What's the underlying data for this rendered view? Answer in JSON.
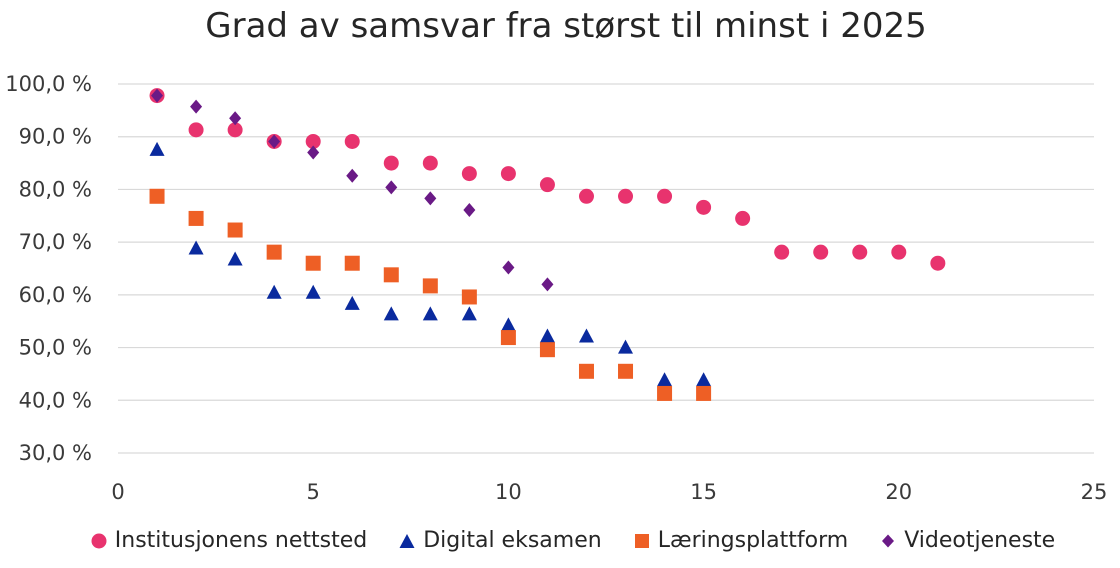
{
  "chart_data": {
    "type": "scatter",
    "title": "Grad av samsvar fra størst til minst i 2025",
    "xlabel": "",
    "ylabel": "",
    "xlim": [
      0,
      25
    ],
    "ylim": [
      30,
      100
    ],
    "x_ticks": [
      0,
      5,
      10,
      15,
      20,
      25
    ],
    "x_tick_labels": [
      "0",
      "5",
      "10",
      "15",
      "20",
      "25"
    ],
    "y_ticks": [
      30,
      40,
      50,
      60,
      70,
      80,
      90,
      100
    ],
    "y_tick_labels": [
      "30,0 %",
      "40,0 %",
      "50,0 %",
      "60,0 %",
      "70,0 %",
      "80,0 %",
      "90,0 %",
      "100,0 %"
    ],
    "grid": "horizontal",
    "legend_position": "bottom",
    "series": [
      {
        "name": "Institusjonens nettsted",
        "marker": "circle",
        "color": "#e8336e",
        "x": [
          1,
          2,
          3,
          4,
          5,
          6,
          7,
          8,
          9,
          10,
          11,
          12,
          13,
          14,
          15,
          16,
          17,
          18,
          19,
          20,
          21
        ],
        "y": [
          97.8,
          91.3,
          91.3,
          89.1,
          89.1,
          89.1,
          85.0,
          85.0,
          83.0,
          83.0,
          80.9,
          78.7,
          78.7,
          78.7,
          76.6,
          74.5,
          68.1,
          68.1,
          68.1,
          68.1,
          66.0
        ]
      },
      {
        "name": "Digital eksamen",
        "marker": "triangle",
        "color": "#0a2a9e",
        "x": [
          1,
          2,
          3,
          4,
          5,
          6,
          7,
          8,
          9,
          10,
          11,
          12,
          13,
          14,
          15
        ],
        "y": [
          87.5,
          68.8,
          66.7,
          60.4,
          60.4,
          58.3,
          56.3,
          56.3,
          56.3,
          54.2,
          52.1,
          52.1,
          50.0,
          43.8,
          43.8
        ]
      },
      {
        "name": "Læringsplattform",
        "marker": "square",
        "color": "#ee5f25",
        "x": [
          1,
          2,
          3,
          4,
          5,
          6,
          7,
          8,
          9,
          10,
          11,
          12,
          13,
          14,
          15
        ],
        "y": [
          78.7,
          74.5,
          72.3,
          68.1,
          66.0,
          66.0,
          63.8,
          61.7,
          59.6,
          51.9,
          49.6,
          45.5,
          45.5,
          41.3,
          41.3
        ]
      },
      {
        "name": "Videotjeneste",
        "marker": "diamond",
        "color": "#6a1a86",
        "x": [
          1,
          2,
          3,
          4,
          5,
          6,
          7,
          8,
          9,
          10,
          11
        ],
        "y": [
          97.8,
          95.7,
          93.5,
          89.1,
          87.0,
          82.6,
          80.4,
          78.3,
          76.1,
          65.2,
          62.0
        ]
      }
    ]
  }
}
